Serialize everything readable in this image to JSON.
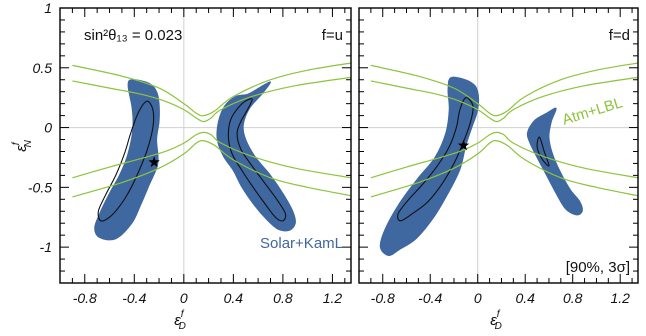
{
  "chart_data": [
    {
      "type": "contour",
      "panel": "left",
      "annotations": {
        "theta13": "sin²θ₁₃ = 0.023",
        "flavor": "f=u",
        "region_label": "Solar+KamL"
      },
      "xlabel": {
        "main": "ε",
        "sup": "f",
        "sub": "D"
      },
      "ylabel": {
        "main": "ε",
        "sup": "f",
        "sub": "N"
      },
      "xlim": [
        -1.0,
        1.35
      ],
      "ylim": [
        -1.3,
        1.0
      ],
      "xticks": [
        -0.8,
        -0.4,
        0,
        0.4,
        0.8,
        1.2
      ],
      "yticks": [
        1,
        0.5,
        0,
        -0.5,
        -1
      ],
      "best_fit": [
        -0.24,
        -0.29
      ],
      "filled_regions": [
        [
          [
            -0.42,
            0.4
          ],
          [
            -0.28,
            0.37
          ],
          [
            -0.22,
            0.3
          ],
          [
            -0.2,
            0.2
          ],
          [
            -0.2,
            0.05
          ],
          [
            -0.22,
            -0.1
          ],
          [
            -0.21,
            -0.3
          ],
          [
            -0.28,
            -0.48
          ],
          [
            -0.35,
            -0.65
          ],
          [
            -0.42,
            -0.8
          ],
          [
            -0.55,
            -0.93
          ],
          [
            -0.68,
            -0.92
          ],
          [
            -0.72,
            -0.84
          ],
          [
            -0.68,
            -0.72
          ],
          [
            -0.6,
            -0.55
          ],
          [
            -0.52,
            -0.4
          ],
          [
            -0.46,
            -0.25
          ],
          [
            -0.42,
            -0.08
          ],
          [
            -0.41,
            0.05
          ],
          [
            -0.42,
            0.18
          ],
          [
            -0.45,
            0.35
          ]
        ],
        [
          [
            0.42,
            0.26
          ],
          [
            0.52,
            0.28
          ],
          [
            0.62,
            0.34
          ],
          [
            0.7,
            0.38
          ],
          [
            0.63,
            0.28
          ],
          [
            0.53,
            0.16
          ],
          [
            0.48,
            0.02
          ],
          [
            0.5,
            -0.1
          ],
          [
            0.58,
            -0.25
          ],
          [
            0.7,
            -0.4
          ],
          [
            0.8,
            -0.55
          ],
          [
            0.88,
            -0.7
          ],
          [
            0.9,
            -0.8
          ],
          [
            0.85,
            -0.86
          ],
          [
            0.76,
            -0.85
          ],
          [
            0.67,
            -0.77
          ],
          [
            0.57,
            -0.65
          ],
          [
            0.47,
            -0.5
          ],
          [
            0.4,
            -0.36
          ],
          [
            0.32,
            -0.24
          ],
          [
            0.27,
            -0.1
          ],
          [
            0.28,
            0.05
          ],
          [
            0.33,
            0.18
          ]
        ]
      ],
      "contours_90": [
        [
          [
            -0.3,
            0.22
          ],
          [
            -0.25,
            0.15
          ],
          [
            -0.25,
            0.0
          ],
          [
            -0.3,
            -0.2
          ],
          [
            -0.37,
            -0.38
          ],
          [
            -0.44,
            -0.53
          ],
          [
            -0.52,
            -0.66
          ],
          [
            -0.6,
            -0.75
          ],
          [
            -0.67,
            -0.78
          ],
          [
            -0.69,
            -0.7
          ],
          [
            -0.63,
            -0.56
          ],
          [
            -0.55,
            -0.4
          ],
          [
            -0.48,
            -0.22
          ],
          [
            -0.43,
            -0.05
          ],
          [
            -0.37,
            0.12
          ]
        ],
        [
          [
            0.47,
            0.2
          ],
          [
            0.55,
            0.24
          ],
          [
            0.52,
            0.16
          ],
          [
            0.46,
            0.05
          ],
          [
            0.43,
            -0.05
          ],
          [
            0.46,
            -0.18
          ],
          [
            0.55,
            -0.32
          ],
          [
            0.65,
            -0.46
          ],
          [
            0.75,
            -0.6
          ],
          [
            0.82,
            -0.72
          ],
          [
            0.8,
            -0.78
          ],
          [
            0.74,
            -0.75
          ],
          [
            0.65,
            -0.63
          ],
          [
            0.56,
            -0.5
          ],
          [
            0.47,
            -0.36
          ],
          [
            0.39,
            -0.22
          ],
          [
            0.36,
            -0.08
          ],
          [
            0.38,
            0.07
          ]
        ]
      ],
      "green_curves": [
        [
          [
            -0.9,
            0.39
          ],
          [
            -0.6,
            0.33
          ],
          [
            -0.35,
            0.28
          ],
          [
            -0.15,
            0.22
          ],
          [
            0.0,
            0.15
          ],
          [
            0.1,
            0.08
          ],
          [
            0.16,
            0.05
          ],
          [
            0.22,
            0.08
          ],
          [
            0.3,
            0.15
          ],
          [
            0.55,
            0.26
          ],
          [
            0.9,
            0.35
          ],
          [
            1.35,
            0.42
          ]
        ],
        [
          [
            -0.9,
            0.52
          ],
          [
            -0.5,
            0.43
          ],
          [
            -0.2,
            0.33
          ],
          [
            0.0,
            0.2
          ],
          [
            0.1,
            0.12
          ],
          [
            0.16,
            0.1
          ],
          [
            0.25,
            0.14
          ],
          [
            0.4,
            0.26
          ],
          [
            0.7,
            0.4
          ],
          [
            1.0,
            0.48
          ],
          [
            1.35,
            0.54
          ]
        ],
        [
          [
            -0.9,
            -0.42
          ],
          [
            -0.6,
            -0.33
          ],
          [
            -0.35,
            -0.26
          ],
          [
            -0.15,
            -0.2
          ],
          [
            0.0,
            -0.13
          ],
          [
            0.1,
            -0.06
          ],
          [
            0.16,
            -0.04
          ],
          [
            0.22,
            -0.06
          ],
          [
            0.3,
            -0.13
          ],
          [
            0.55,
            -0.24
          ],
          [
            0.9,
            -0.34
          ],
          [
            1.35,
            -0.42
          ]
        ],
        [
          [
            -0.9,
            -0.58
          ],
          [
            -0.5,
            -0.46
          ],
          [
            -0.2,
            -0.34
          ],
          [
            0.0,
            -0.22
          ],
          [
            0.1,
            -0.13
          ],
          [
            0.16,
            -0.11
          ],
          [
            0.25,
            -0.15
          ],
          [
            0.4,
            -0.27
          ],
          [
            0.7,
            -0.42
          ],
          [
            1.0,
            -0.5
          ],
          [
            1.35,
            -0.57
          ]
        ]
      ]
    },
    {
      "type": "contour",
      "panel": "right",
      "annotations": {
        "flavor": "f=d",
        "green_label": "Atm+LBL",
        "confidence": "[90%, 3σ]"
      },
      "xlabel": {
        "main": "ε",
        "sup": "f",
        "sub": "D"
      },
      "xlim": [
        -1.0,
        1.35
      ],
      "ylim": [
        -1.3,
        1.0
      ],
      "xticks": [
        -0.8,
        -0.4,
        0,
        0.4,
        0.8,
        1.2
      ],
      "yticks": [
        1,
        0.5,
        0,
        -0.5,
        -1
      ],
      "best_fit": [
        -0.12,
        -0.15
      ],
      "filled_regions": [
        [
          [
            -0.22,
            0.42
          ],
          [
            -0.06,
            0.38
          ],
          [
            0.0,
            0.3
          ],
          [
            0.0,
            0.15
          ],
          [
            -0.05,
            0.0
          ],
          [
            -0.1,
            -0.15
          ],
          [
            -0.15,
            -0.35
          ],
          [
            -0.25,
            -0.55
          ],
          [
            -0.37,
            -0.75
          ],
          [
            -0.52,
            -0.93
          ],
          [
            -0.66,
            -1.02
          ],
          [
            -0.75,
            -1.07
          ],
          [
            -0.82,
            -1.0
          ],
          [
            -0.78,
            -0.85
          ],
          [
            -0.65,
            -0.62
          ],
          [
            -0.5,
            -0.42
          ],
          [
            -0.36,
            -0.25
          ],
          [
            -0.27,
            -0.05
          ],
          [
            -0.24,
            0.15
          ],
          [
            -0.25,
            0.32
          ]
        ],
        [
          [
            0.58,
            0.12
          ],
          [
            0.66,
            0.16
          ],
          [
            0.62,
            0.05
          ],
          [
            0.6,
            -0.08
          ],
          [
            0.63,
            -0.22
          ],
          [
            0.7,
            -0.38
          ],
          [
            0.78,
            -0.52
          ],
          [
            0.86,
            -0.62
          ],
          [
            0.88,
            -0.7
          ],
          [
            0.83,
            -0.73
          ],
          [
            0.74,
            -0.68
          ],
          [
            0.66,
            -0.55
          ],
          [
            0.58,
            -0.4
          ],
          [
            0.5,
            -0.25
          ],
          [
            0.44,
            -0.13
          ],
          [
            0.42,
            -0.04
          ],
          [
            0.48,
            0.06
          ]
        ]
      ],
      "contours_90": [
        [
          [
            -0.1,
            0.25
          ],
          [
            -0.04,
            0.18
          ],
          [
            -0.06,
            0.05
          ],
          [
            -0.12,
            -0.12
          ],
          [
            -0.2,
            -0.3
          ],
          [
            -0.3,
            -0.47
          ],
          [
            -0.42,
            -0.62
          ],
          [
            -0.55,
            -0.72
          ],
          [
            -0.65,
            -0.78
          ],
          [
            -0.67,
            -0.72
          ],
          [
            -0.58,
            -0.6
          ],
          [
            -0.46,
            -0.47
          ],
          [
            -0.34,
            -0.32
          ],
          [
            -0.24,
            -0.16
          ],
          [
            -0.18,
            0.0
          ],
          [
            -0.15,
            0.15
          ]
        ],
        [
          [
            0.52,
            -0.08
          ],
          [
            0.56,
            -0.2
          ],
          [
            0.6,
            -0.32
          ],
          [
            0.54,
            -0.26
          ],
          [
            0.5,
            -0.16
          ]
        ]
      ],
      "green_curves": [
        [
          [
            -0.9,
            0.39
          ],
          [
            -0.6,
            0.33
          ],
          [
            -0.35,
            0.28
          ],
          [
            -0.15,
            0.22
          ],
          [
            0.0,
            0.15
          ],
          [
            0.1,
            0.08
          ],
          [
            0.16,
            0.05
          ],
          [
            0.22,
            0.08
          ],
          [
            0.3,
            0.15
          ],
          [
            0.55,
            0.26
          ],
          [
            0.9,
            0.35
          ],
          [
            1.35,
            0.42
          ]
        ],
        [
          [
            -0.9,
            0.52
          ],
          [
            -0.5,
            0.43
          ],
          [
            -0.2,
            0.33
          ],
          [
            0.0,
            0.2
          ],
          [
            0.1,
            0.12
          ],
          [
            0.16,
            0.1
          ],
          [
            0.25,
            0.14
          ],
          [
            0.4,
            0.26
          ],
          [
            0.7,
            0.4
          ],
          [
            1.0,
            0.48
          ],
          [
            1.35,
            0.54
          ]
        ],
        [
          [
            -0.9,
            -0.42
          ],
          [
            -0.6,
            -0.33
          ],
          [
            -0.35,
            -0.26
          ],
          [
            -0.15,
            -0.2
          ],
          [
            0.0,
            -0.13
          ],
          [
            0.1,
            -0.06
          ],
          [
            0.16,
            -0.04
          ],
          [
            0.22,
            -0.06
          ],
          [
            0.3,
            -0.13
          ],
          [
            0.55,
            -0.24
          ],
          [
            0.9,
            -0.34
          ],
          [
            1.35,
            -0.42
          ]
        ],
        [
          [
            -0.9,
            -0.58
          ],
          [
            -0.5,
            -0.46
          ],
          [
            -0.2,
            -0.34
          ],
          [
            0.0,
            -0.22
          ],
          [
            0.1,
            -0.13
          ],
          [
            0.16,
            -0.11
          ],
          [
            0.25,
            -0.15
          ],
          [
            0.4,
            -0.27
          ],
          [
            0.7,
            -0.42
          ],
          [
            1.0,
            -0.5
          ],
          [
            1.35,
            -0.57
          ]
        ]
      ]
    }
  ],
  "colors": {
    "solar_fill": "#3f67a0",
    "contour_line": "#111111",
    "atm_line": "#8cc43c",
    "zero_line": "#d0d0d0",
    "frame": "#000000"
  }
}
